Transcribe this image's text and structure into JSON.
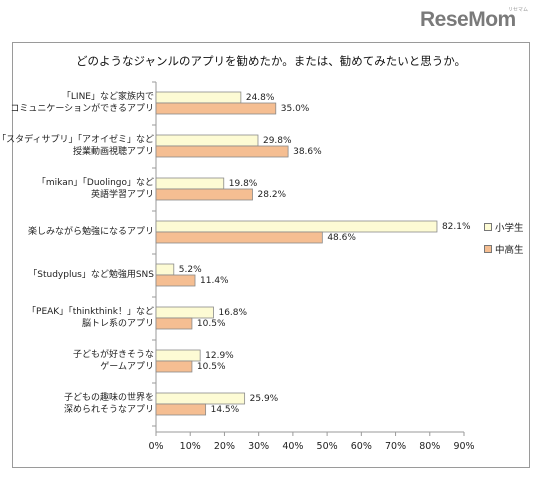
{
  "brand": {
    "logo_text": "ReseMom",
    "logo_sub": "リセマム"
  },
  "chart_data": {
    "type": "bar",
    "orientation": "horizontal",
    "title": "どのようなジャンルのアプリを勧めたか。または、勧めてみたいと思うか。",
    "categories": [
      [
        "「LINE」など家族内で",
        "コミュニケーションができるアプリ"
      ],
      [
        "「スタディサプリ」「アオイゼミ」など",
        "授業動画視聴アプリ"
      ],
      [
        "「mikan」「Duolingo」など",
        "英語学習アプリ"
      ],
      [
        "楽しみながら勉強になるアプリ"
      ],
      [
        "「Studyplus」など勉強用SNS"
      ],
      [
        "「PEAK」「thinkthink！」など",
        "脳トレ系のアプリ"
      ],
      [
        "子どもが好きそうな",
        "ゲームアプリ"
      ],
      [
        "子どもの趣味の世界を",
        "深められそうなアプリ"
      ]
    ],
    "series": [
      {
        "name": "小学生",
        "color": "#fdfbd4",
        "values": [
          24.8,
          29.8,
          19.8,
          82.1,
          5.2,
          16.8,
          12.9,
          25.9
        ]
      },
      {
        "name": "中高生",
        "color": "#f5be92",
        "values": [
          35.0,
          38.6,
          28.2,
          48.6,
          11.4,
          10.5,
          10.5,
          14.5
        ]
      }
    ],
    "value_labels": [
      [
        "24.8%",
        "29.8%",
        "19.8%",
        "82.1%",
        "5.2%",
        "16.8%",
        "12.9%",
        "25.9%"
      ],
      [
        "35.0%",
        "38.6%",
        "28.2%",
        "48.6%",
        "11.4%",
        "10.5%",
        "10.5%",
        "14.5%"
      ]
    ],
    "xlim": [
      0,
      90
    ],
    "xticks": [
      "0%",
      "10%",
      "20%",
      "30%",
      "40%",
      "50%",
      "60%",
      "70%",
      "80%",
      "90%"
    ],
    "grid": false,
    "legend_position": "right",
    "bar_outline_color": "#8a8a8a",
    "axis_color": "#9a9a9a"
  }
}
